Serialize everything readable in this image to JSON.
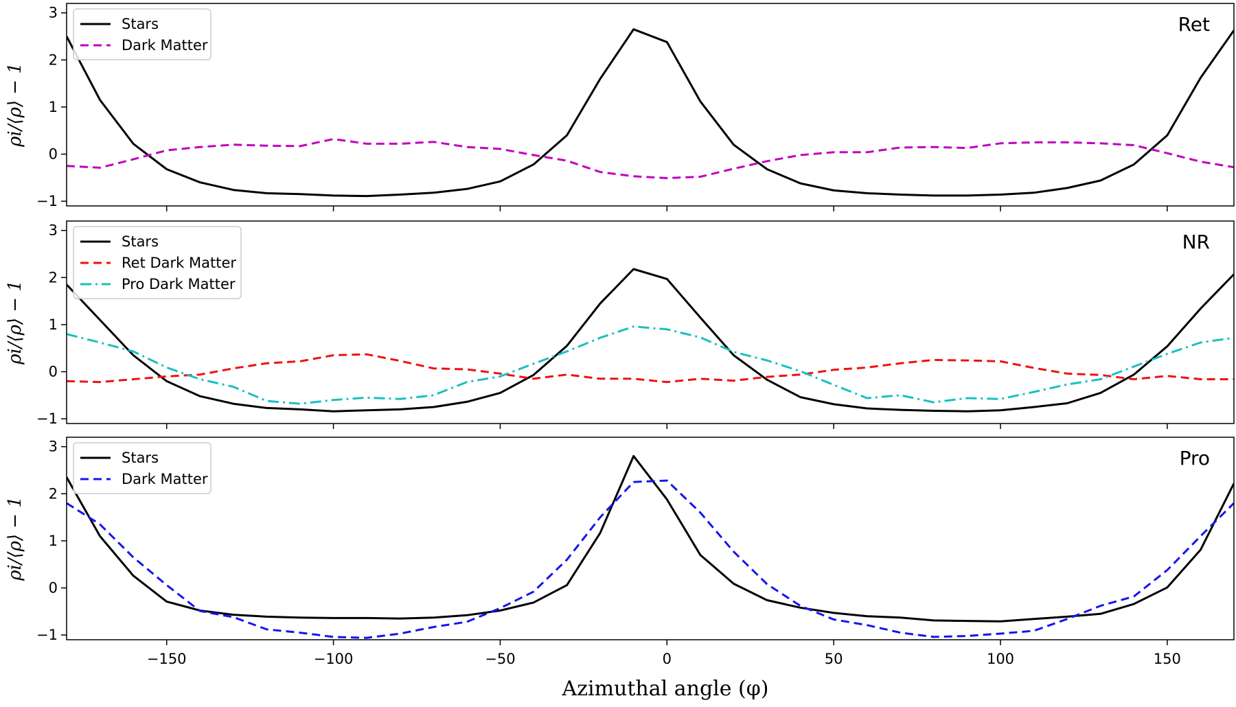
{
  "chart_data": {
    "type": "line",
    "xlabel": "Azimuthal angle (φ)",
    "xlim": [
      -180,
      170
    ],
    "xticks": [
      -150,
      -100,
      -50,
      0,
      50,
      100,
      150
    ],
    "xtick_labels": [
      "−150",
      "−100",
      "−50",
      "0",
      "50",
      "100",
      "150"
    ],
    "x": [
      -180,
      -170,
      -160,
      -150,
      -140,
      -130,
      -120,
      -110,
      -100,
      -90,
      -80,
      -70,
      -60,
      -50,
      -40,
      -30,
      -20,
      -10,
      0,
      10,
      20,
      30,
      40,
      50,
      60,
      70,
      80,
      90,
      100,
      110,
      120,
      130,
      140,
      150,
      160,
      170
    ],
    "panels": [
      {
        "label": "Ret",
        "ylabel": "ρi/⟨ρ⟩ − 1",
        "ylim": [
          -1.1,
          3.2
        ],
        "yticks": [
          -1,
          0,
          1,
          2,
          3
        ],
        "ytick_labels": [
          "−1",
          "0",
          "1",
          "2",
          "3"
        ],
        "series": [
          {
            "name": "Stars",
            "color": "#000000",
            "style": "solid",
            "values": [
              2.5,
              1.15,
              0.22,
              -0.32,
              -0.6,
              -0.76,
              -0.83,
              -0.85,
              -0.88,
              -0.89,
              -0.86,
              -0.82,
              -0.74,
              -0.58,
              -0.22,
              0.4,
              1.6,
              2.65,
              2.38,
              1.12,
              0.2,
              -0.32,
              -0.62,
              -0.77,
              -0.83,
              -0.86,
              -0.88,
              -0.88,
              -0.86,
              -0.82,
              -0.72,
              -0.56,
              -0.22,
              0.4,
              1.62,
              2.63
            ]
          },
          {
            "name": "Dark Matter",
            "color": "#c000c0",
            "style": "dashed",
            "values": [
              -0.25,
              -0.29,
              -0.11,
              0.08,
              0.15,
              0.2,
              0.18,
              0.17,
              0.32,
              0.22,
              0.22,
              0.26,
              0.15,
              0.11,
              -0.02,
              -0.14,
              -0.38,
              -0.47,
              -0.51,
              -0.48,
              -0.31,
              -0.15,
              -0.02,
              0.04,
              0.04,
              0.14,
              0.15,
              0.13,
              0.23,
              0.25,
              0.25,
              0.23,
              0.19,
              0.02,
              -0.16,
              -0.28
            ]
          }
        ]
      },
      {
        "label": "NR",
        "ylabel": "ρi/⟨ρ⟩ − 1",
        "ylim": [
          -1.1,
          3.2
        ],
        "yticks": [
          -1,
          0,
          1,
          2,
          3
        ],
        "ytick_labels": [
          "−1",
          "0",
          "1",
          "2",
          "3"
        ],
        "series": [
          {
            "name": "Stars",
            "color": "#000000",
            "style": "solid",
            "values": [
              1.85,
              1.1,
              0.35,
              -0.2,
              -0.52,
              -0.68,
              -0.77,
              -0.8,
              -0.84,
              -0.82,
              -0.8,
              -0.75,
              -0.64,
              -0.45,
              -0.07,
              0.55,
              1.45,
              2.18,
              1.97,
              1.15,
              0.35,
              -0.17,
              -0.54,
              -0.69,
              -0.78,
              -0.81,
              -0.83,
              -0.84,
              -0.82,
              -0.75,
              -0.67,
              -0.45,
              -0.06,
              0.54,
              1.34,
              2.07
            ]
          },
          {
            "name": "Ret Dark Matter",
            "color": "#ee1111",
            "style": "dashed",
            "values": [
              -0.2,
              -0.22,
              -0.16,
              -0.1,
              -0.06,
              0.07,
              0.18,
              0.22,
              0.35,
              0.37,
              0.23,
              0.07,
              0.05,
              -0.04,
              -0.15,
              -0.06,
              -0.15,
              -0.15,
              -0.22,
              -0.15,
              -0.19,
              -0.11,
              -0.06,
              0.04,
              0.09,
              0.18,
              0.25,
              0.24,
              0.22,
              0.08,
              -0.04,
              -0.07,
              -0.16,
              -0.09,
              -0.16,
              -0.16
            ]
          },
          {
            "name": "Pro Dark Matter",
            "color": "#1bbfbf",
            "style": "dashdot",
            "values": [
              0.8,
              0.62,
              0.43,
              0.09,
              -0.16,
              -0.32,
              -0.62,
              -0.68,
              -0.6,
              -0.55,
              -0.58,
              -0.5,
              -0.22,
              -0.1,
              0.17,
              0.43,
              0.72,
              0.96,
              0.9,
              0.73,
              0.42,
              0.24,
              0.01,
              -0.28,
              -0.56,
              -0.5,
              -0.65,
              -0.56,
              -0.58,
              -0.43,
              -0.27,
              -0.16,
              0.11,
              0.38,
              0.62,
              0.72
            ]
          }
        ]
      },
      {
        "label": "Pro",
        "ylabel": "ρi/⟨ρ⟩ − 1",
        "ylim": [
          -1.1,
          3.2
        ],
        "yticks": [
          -1,
          0,
          1,
          2,
          3
        ],
        "ytick_labels": [
          "−1",
          "0",
          "1",
          "2",
          "3"
        ],
        "series": [
          {
            "name": "Stars",
            "color": "#000000",
            "style": "solid",
            "values": [
              2.35,
              1.1,
              0.26,
              -0.29,
              -0.48,
              -0.57,
              -0.61,
              -0.63,
              -0.64,
              -0.64,
              -0.65,
              -0.63,
              -0.58,
              -0.48,
              -0.31,
              0.06,
              1.17,
              2.8,
              1.88,
              0.7,
              0.09,
              -0.26,
              -0.42,
              -0.53,
              -0.6,
              -0.63,
              -0.69,
              -0.7,
              -0.71,
              -0.66,
              -0.61,
              -0.55,
              -0.34,
              0.01,
              0.81,
              2.22
            ]
          },
          {
            "name": "Dark Matter",
            "color": "#1515ee",
            "style": "dashed",
            "values": [
              1.8,
              1.35,
              0.65,
              0.06,
              -0.49,
              -0.62,
              -0.88,
              -0.95,
              -1.04,
              -1.06,
              -0.97,
              -0.83,
              -0.72,
              -0.43,
              -0.08,
              0.6,
              1.5,
              2.25,
              2.28,
              1.6,
              0.77,
              0.08,
              -0.38,
              -0.67,
              -0.79,
              -0.95,
              -1.04,
              -1.02,
              -0.97,
              -0.91,
              -0.66,
              -0.38,
              -0.18,
              0.38,
              1.1,
              1.8
            ]
          }
        ]
      }
    ]
  }
}
